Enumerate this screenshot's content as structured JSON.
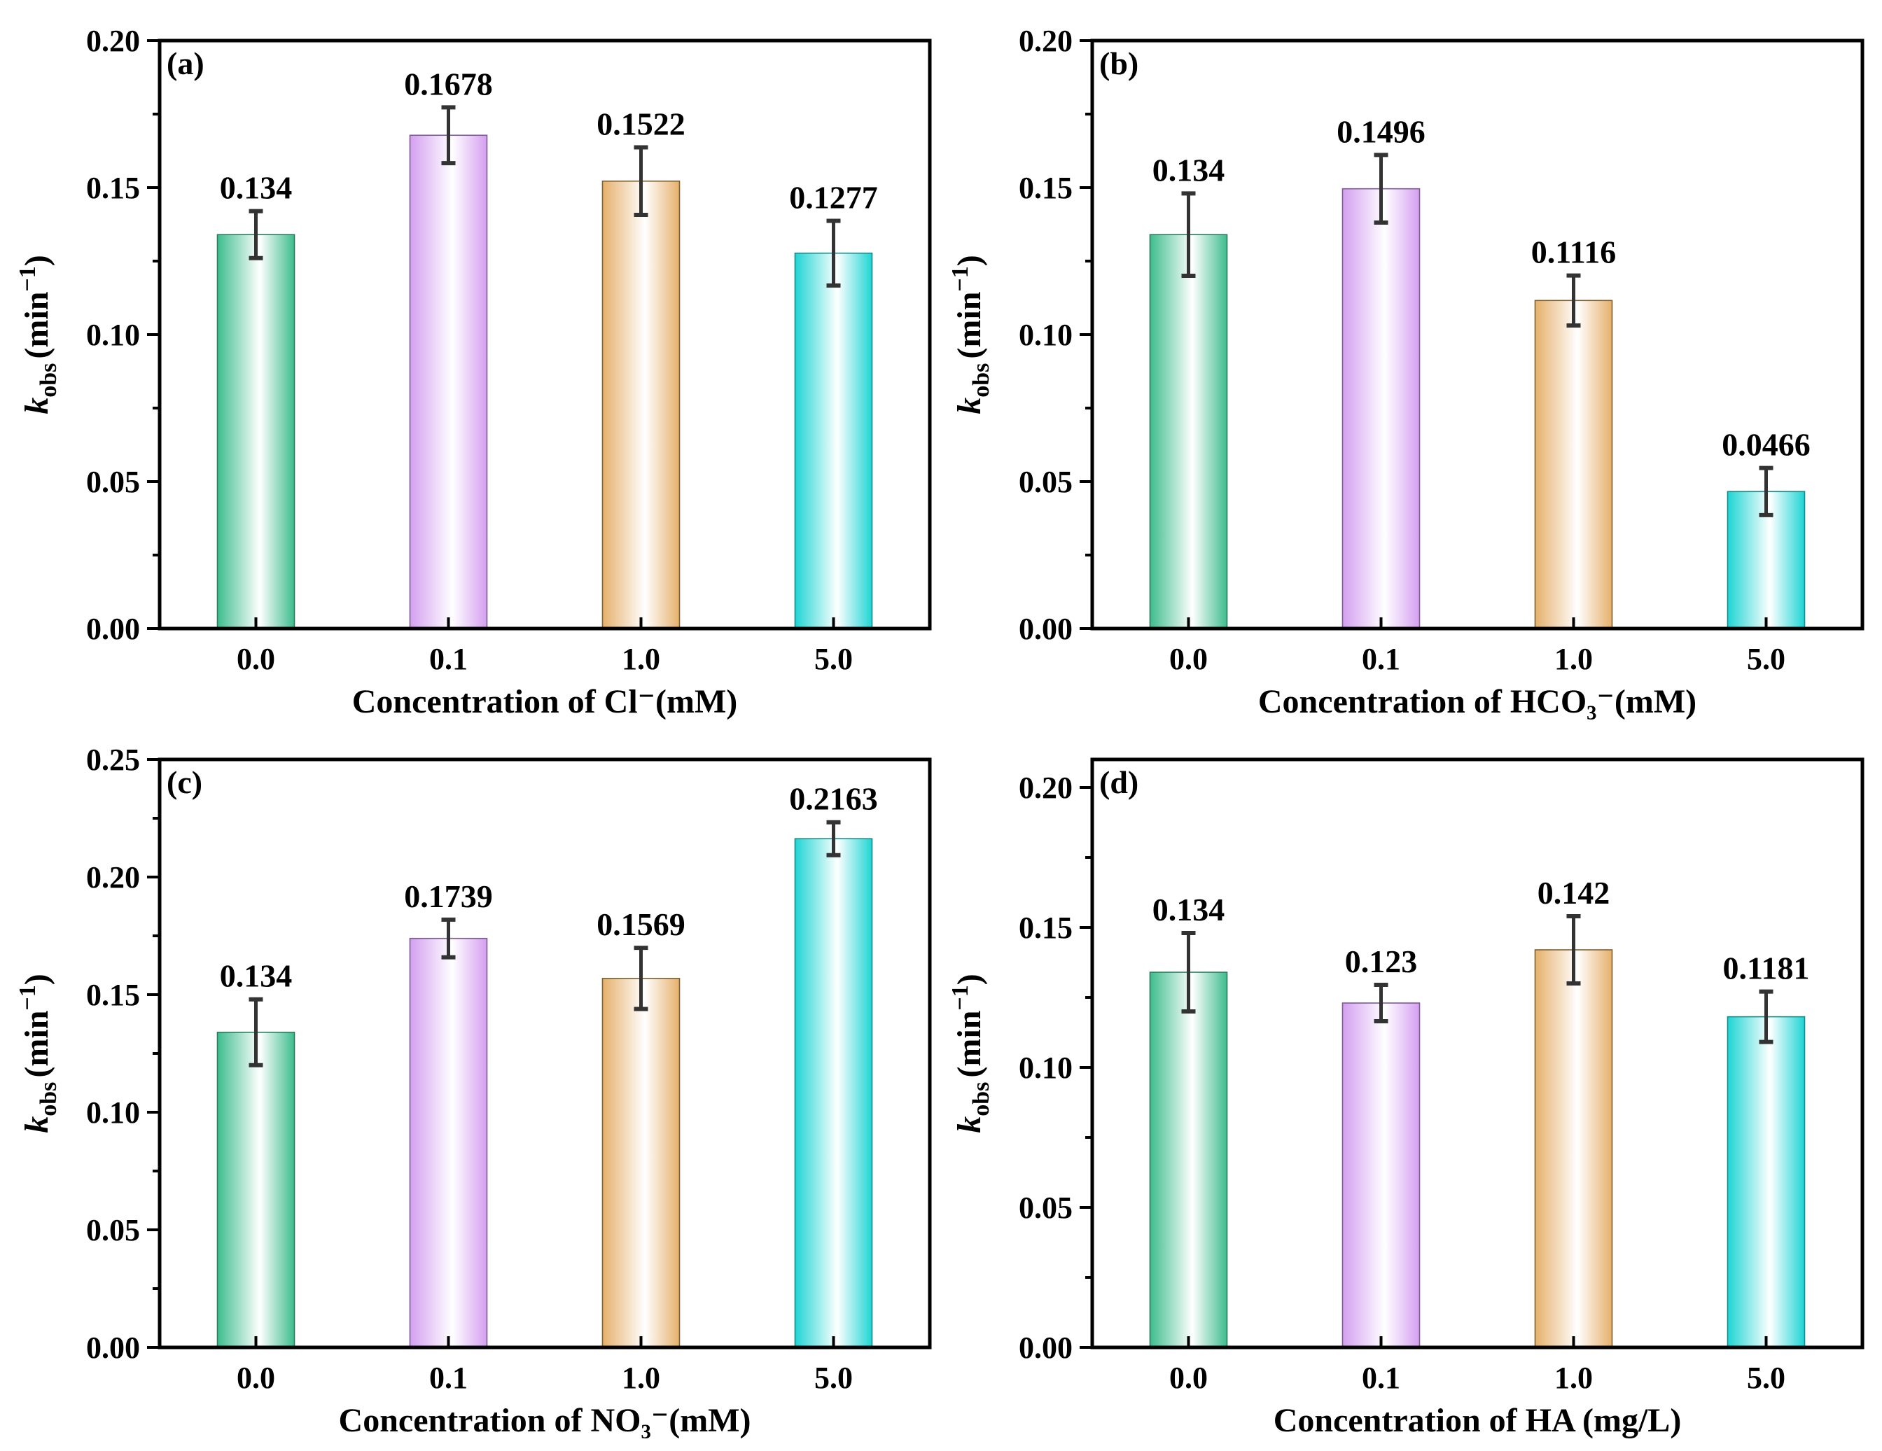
{
  "colors": {
    "bar_gradients": [
      "#3dbd8d",
      "#d49ff0",
      "#e6b06b",
      "#1fd4d4"
    ],
    "bar_edges": [
      "#2a7a5c",
      "#7a5b92",
      "#7e5f30",
      "#178a8a"
    ],
    "error_bar": "#333333",
    "axis": "#000000"
  },
  "chart_data": [
    {
      "type": "bar",
      "panel_label": "(a)",
      "categories": [
        "0.0",
        "0.1",
        "1.0",
        "5.0"
      ],
      "values": [
        0.134,
        0.1678,
        0.1522,
        0.1277
      ],
      "value_labels": [
        "0.134",
        "0.1678",
        "0.1522",
        "0.1277"
      ],
      "errors": [
        0.008,
        0.0095,
        0.0115,
        0.011
      ],
      "xlabel": "Concentration of Cl⁻(mM)",
      "ylabel": {
        "main": "k",
        "sub": "obs",
        "unit": "(min",
        "sup": "−1",
        "close": ")"
      },
      "ylim": [
        0,
        0.2
      ],
      "yticks": [
        "0.00",
        "0.05",
        "0.10",
        "0.15",
        "0.20"
      ],
      "ytick_values": [
        0,
        0.05,
        0.1,
        0.15,
        0.2
      ],
      "minor_ticks": true,
      "grid": false
    },
    {
      "type": "bar",
      "panel_label": "(b)",
      "categories": [
        "0.0",
        "0.1",
        "1.0",
        "5.0"
      ],
      "values": [
        0.134,
        0.1496,
        0.1116,
        0.0466
      ],
      "value_labels": [
        "0.134",
        "0.1496",
        "0.1116",
        "0.0466"
      ],
      "errors": [
        0.014,
        0.0115,
        0.0085,
        0.008
      ],
      "xlabel": "Concentration of HCO₃⁻(mM)",
      "ylabel": {
        "main": "k",
        "sub": "obs",
        "unit": "(min",
        "sup": "−1",
        "close": ")"
      },
      "ylim": [
        0,
        0.2
      ],
      "yticks": [
        "0.00",
        "0.05",
        "0.10",
        "0.15",
        "0.20"
      ],
      "ytick_values": [
        0,
        0.05,
        0.1,
        0.15,
        0.2
      ],
      "minor_ticks": true,
      "grid": false
    },
    {
      "type": "bar",
      "panel_label": "(c)",
      "categories": [
        "0.0",
        "0.1",
        "1.0",
        "5.0"
      ],
      "values": [
        0.134,
        0.1739,
        0.1569,
        0.2163
      ],
      "value_labels": [
        "0.134",
        "0.1739",
        "0.1569",
        "0.2163"
      ],
      "errors": [
        0.014,
        0.008,
        0.013,
        0.007
      ],
      "xlabel": "Concentration of NO₃⁻(mM)",
      "ylabel": {
        "main": "k",
        "sub": "obs",
        "unit": "(min",
        "sup": "−1",
        "close": ")"
      },
      "ylim": [
        0,
        0.25
      ],
      "yticks": [
        "0.00",
        "0.05",
        "0.10",
        "0.15",
        "0.20",
        "0.25"
      ],
      "ytick_values": [
        0,
        0.05,
        0.1,
        0.15,
        0.2,
        0.25
      ],
      "minor_ticks": true,
      "grid": false
    },
    {
      "type": "bar",
      "panel_label": "(d)",
      "categories": [
        "0.0",
        "0.1",
        "1.0",
        "5.0"
      ],
      "values": [
        0.134,
        0.123,
        0.142,
        0.1181
      ],
      "value_labels": [
        "0.134",
        "0.123",
        "0.142",
        "0.1181"
      ],
      "errors": [
        0.014,
        0.0065,
        0.012,
        0.009
      ],
      "xlabel": "Concentration of HA (mg/L)",
      "ylabel": {
        "main": "k",
        "sub": "obs",
        "unit": "(min",
        "sup": "−1",
        "close": ")"
      },
      "ylim": [
        0,
        0.21
      ],
      "yticks": [
        "0.00",
        "0.05",
        "0.10",
        "0.15",
        "0.20"
      ],
      "ytick_values": [
        0,
        0.05,
        0.1,
        0.15,
        0.2
      ],
      "minor_ticks": true,
      "grid": false
    }
  ]
}
